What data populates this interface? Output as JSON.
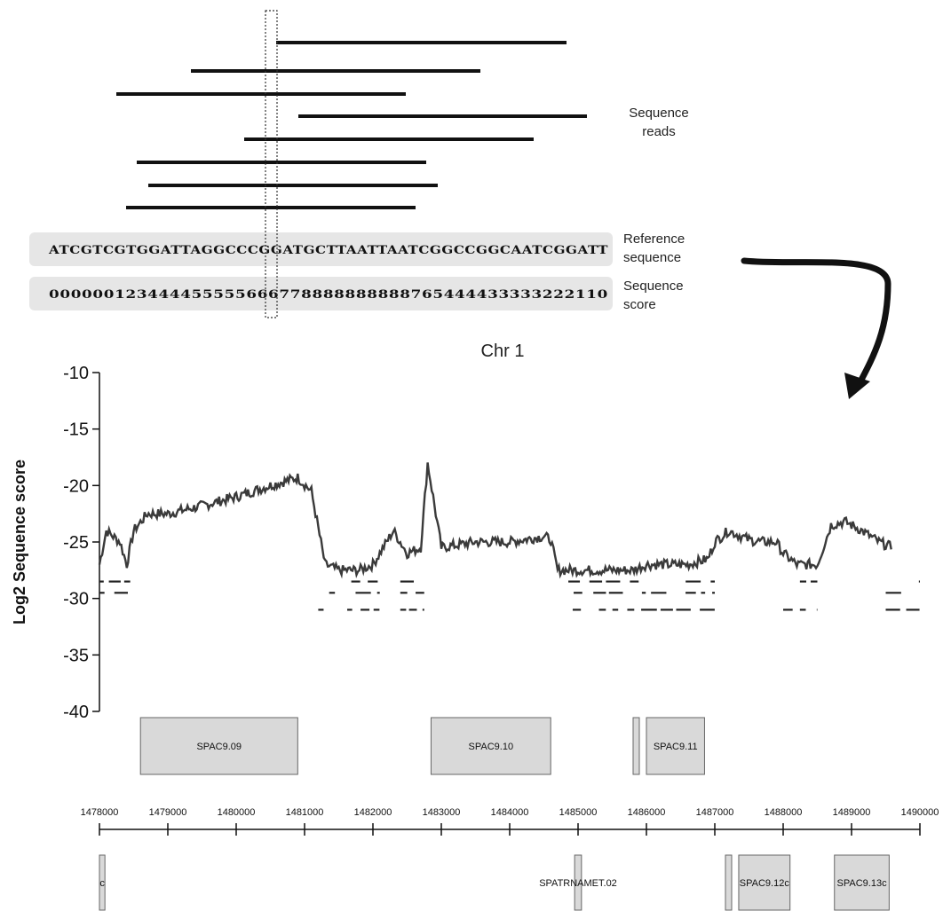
{
  "annotations": {
    "reads_label_1": "Sequence",
    "reads_label_2": "reads",
    "ref_label_1": "Reference",
    "ref_label_2": "sequence",
    "score_label_1": "Sequence",
    "score_label_2": "score"
  },
  "reference_sequence": "ATCGTCGTGGATTAGGCCCGGATGCTTAATTAATCGGCCGGCAATCGGATT",
  "sequence_score": "000000123444455555666778888888888765444433333222110",
  "colors": {
    "read": "#111111",
    "panel": "#e6e6e6",
    "signal": "#3a3a3a",
    "gene_box": "#d9d9d9",
    "gene_border": "#666666"
  },
  "chart_data": {
    "type": "line",
    "title": "Chr 1",
    "xlabel": "",
    "ylabel": "Log2 Sequence score",
    "ylim": [
      -40,
      -10
    ],
    "yticks": [
      "-10",
      "-15",
      "-20",
      "-25",
      "-30",
      "-35",
      "-40"
    ],
    "xlim": [
      1478000,
      1490000
    ],
    "xticks": [
      "1478000",
      "1479000",
      "1480000",
      "1481000",
      "1482000",
      "1483000",
      "1484000",
      "1485000",
      "1486000",
      "1487000",
      "1488000",
      "1489000",
      "1490000"
    ],
    "grid": false,
    "series": [
      {
        "x": [
          1478000,
          1478100,
          1478300,
          1478400,
          1478500,
          1478700,
          1479000,
          1479500,
          1480000,
          1480500,
          1480900,
          1481100,
          1481300,
          1481500,
          1481800,
          1482000,
          1482200,
          1482300,
          1482500,
          1482700,
          1482800,
          1483000,
          1483500,
          1484000,
          1484500,
          1484600,
          1484700,
          1484900,
          1485200,
          1485500,
          1485800,
          1486000,
          1486300,
          1486600,
          1486900,
          1487000,
          1487200,
          1487500,
          1487700,
          1487900,
          1488000,
          1488200,
          1488500,
          1488700,
          1488900,
          1489100,
          1489400,
          1489600
        ],
        "values": [
          -27,
          -24,
          -25,
          -27,
          -24,
          -22.5,
          -22.5,
          -21.8,
          -21,
          -20,
          -19.3,
          -20.5,
          -27,
          -27.5,
          -27.5,
          -27,
          -25,
          -24,
          -26,
          -25.5,
          -18,
          -25.5,
          -25,
          -25,
          -24.5,
          -24.8,
          -27.5,
          -27.5,
          -27.5,
          -27.5,
          -27.5,
          -27,
          -27,
          -27,
          -26.5,
          -25,
          -24,
          -24.8,
          -25,
          -25,
          -26,
          -27,
          -27,
          -23.5,
          -23.2,
          -23.8,
          -25,
          -25.5
        ]
      }
    ],
    "gene_track_upper": [
      {
        "label": "SPAC9.09",
        "start": 1478600,
        "end": 1480900
      },
      {
        "label": "SPAC9.10",
        "start": 1482850,
        "end": 1484600
      },
      {
        "label": "SPAC9.11",
        "start": 1486000,
        "end": 1486850
      }
    ],
    "gene_track_lower": [
      {
        "label": "c",
        "start": 1478000,
        "end": 1478080
      },
      {
        "label": "SPATRNAMET.02",
        "start": 1484950,
        "end": 1485050
      },
      {
        "label": "SPAC9.12c",
        "start": 1487350,
        "end": 1488100
      },
      {
        "label": "SPAC9.13c",
        "start": 1488750,
        "end": 1489550
      }
    ]
  }
}
